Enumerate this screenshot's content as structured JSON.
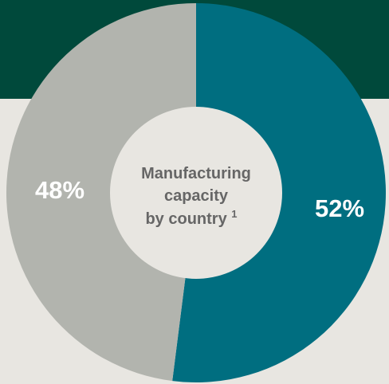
{
  "chart_data": {
    "type": "pie",
    "variant": "donut",
    "title_lines": [
      "Manufacturing",
      "capacity",
      "by country"
    ],
    "title_footnote": "1",
    "slices": [
      {
        "label": "52%",
        "value": 52,
        "color": "#006e80"
      },
      {
        "label": "48%",
        "value": 48,
        "color": "#b2b4ae"
      }
    ],
    "center_color": "#e8e6e1",
    "header_band_color": "#00493b"
  }
}
